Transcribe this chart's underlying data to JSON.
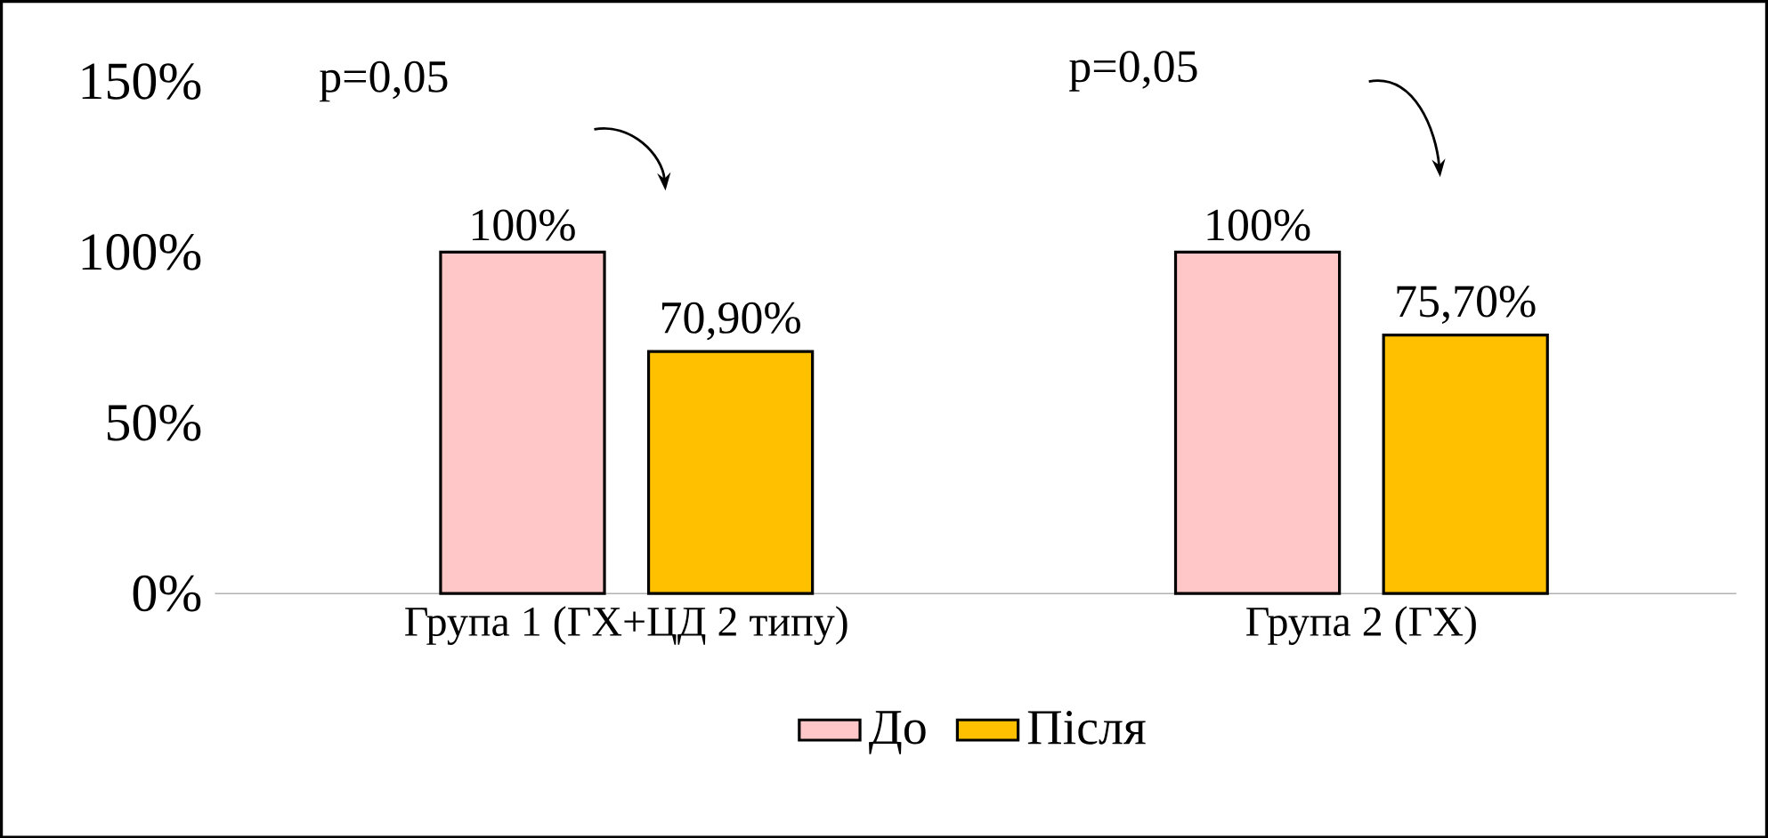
{
  "chart_data": {
    "type": "bar",
    "categories": [
      "Група 1 (ГХ+ЦД 2 типу)",
      "Група 2 (ГХ)"
    ],
    "series": [
      {
        "name": "До",
        "color": "#ffc7c7",
        "values": [
          100,
          100
        ],
        "value_labels": [
          "100%",
          "100%"
        ]
      },
      {
        "name": "Після",
        "color": "#ffc000",
        "values": [
          70.9,
          75.7
        ],
        "value_labels": [
          "70,90%",
          "75,70%"
        ]
      }
    ],
    "ylim": [
      0,
      150
    ],
    "yticks": [
      {
        "value": 0,
        "label": "0%"
      },
      {
        "value": 50,
        "label": "50%"
      },
      {
        "value": 100,
        "label": "100%"
      },
      {
        "value": 150,
        "label": "150%"
      }
    ],
    "annotations": [
      "p=0,05",
      "p=0,05"
    ],
    "legend": "bottom",
    "grid": false
  }
}
